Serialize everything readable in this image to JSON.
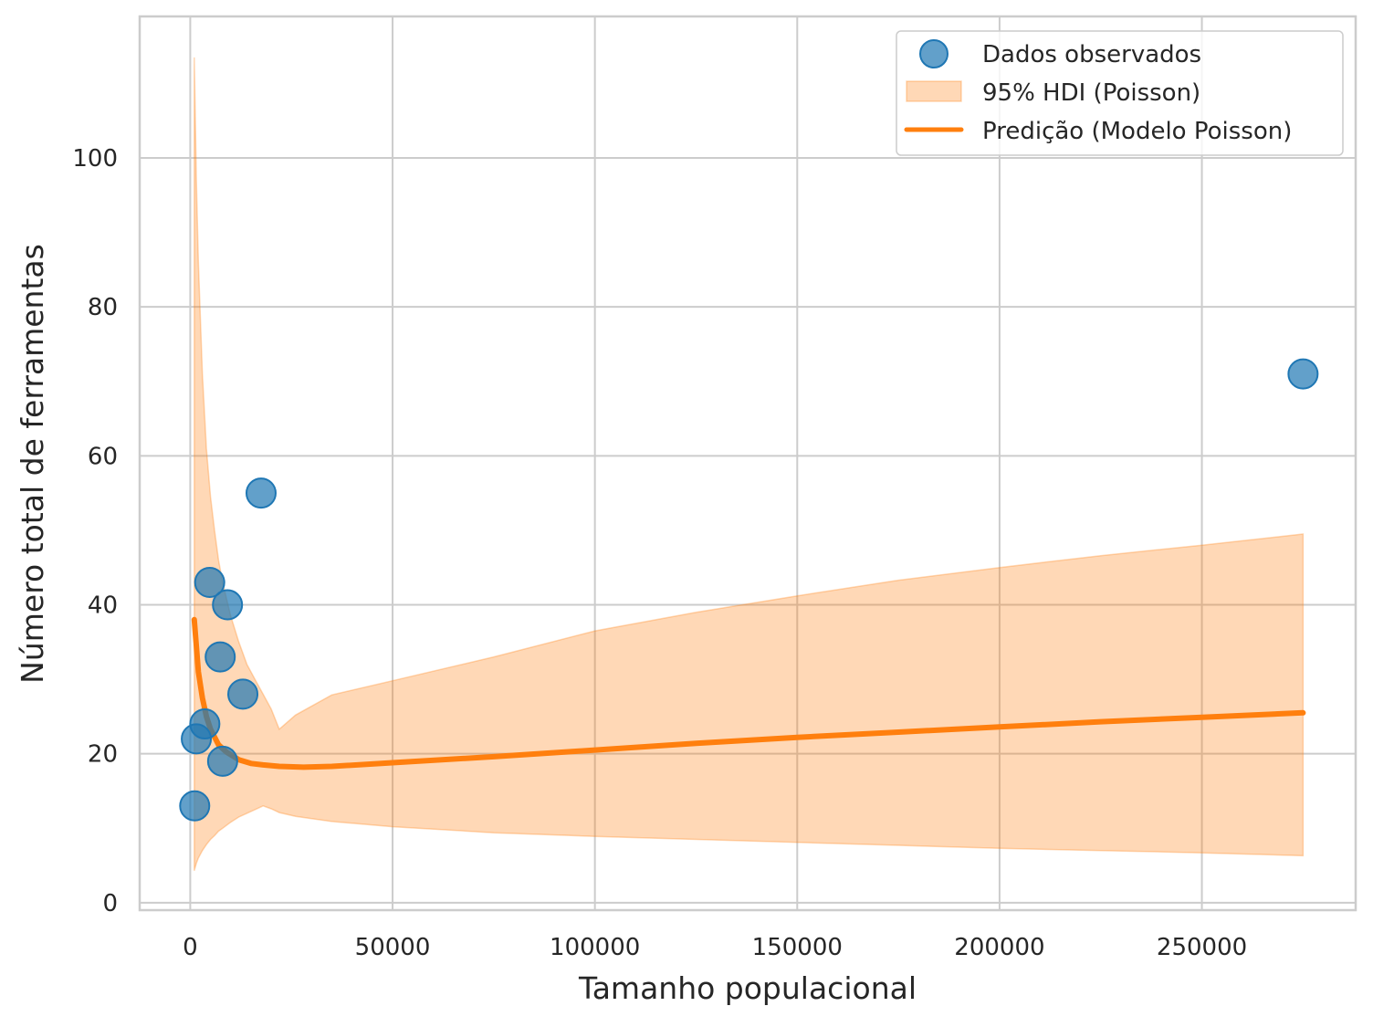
{
  "chart_data": {
    "type": "scatter",
    "xlabel": "Tamanho populacional",
    "ylabel": "Número total de ferramentas",
    "xlim": [
      -12500,
      288000
    ],
    "ylim": [
      -1,
      119
    ],
    "xticks": [
      0,
      50000,
      100000,
      150000,
      200000,
      250000
    ],
    "xtick_labels": [
      "0",
      "50000",
      "100000",
      "150000",
      "200000",
      "250000"
    ],
    "yticks": [
      0,
      20,
      40,
      60,
      80,
      100
    ],
    "ytick_labels": [
      "0",
      "20",
      "40",
      "60",
      "80",
      "100"
    ],
    "grid": true,
    "legend_position": "top-right",
    "legend": {
      "observed": "Dados observados",
      "hdi": "95% HDI (Poisson)",
      "prediction": "Predição (Modelo Poisson)"
    },
    "colors": {
      "observed": "#1f77b4",
      "hdi": "#ff7f0e",
      "prediction": "#ff7f0e",
      "grid": "#cccccc",
      "axes": "#cccccc"
    },
    "observed_points": [
      {
        "x": 1100,
        "y": 13
      },
      {
        "x": 1500,
        "y": 22
      },
      {
        "x": 3600,
        "y": 24
      },
      {
        "x": 4800,
        "y": 43
      },
      {
        "x": 7400,
        "y": 33
      },
      {
        "x": 8000,
        "y": 19
      },
      {
        "x": 9200,
        "y": 40
      },
      {
        "x": 13000,
        "y": 28
      },
      {
        "x": 17500,
        "y": 55
      },
      {
        "x": 275000,
        "y": 71
      }
    ],
    "prediction": {
      "x": [
        1000,
        2000,
        3000,
        4000,
        5000,
        7000,
        9000,
        12000,
        15000,
        18000,
        22000,
        28000,
        35000,
        50000,
        75000,
        100000,
        125000,
        150000,
        175000,
        200000,
        225000,
        250000,
        275000
      ],
      "y": [
        38,
        31,
        27.5,
        25,
        23.3,
        21.2,
        20.2,
        19.2,
        18.7,
        18.5,
        18.3,
        18.2,
        18.3,
        18.8,
        19.6,
        20.5,
        21.4,
        22.2,
        22.9,
        23.6,
        24.3,
        24.9,
        25.5
      ]
    },
    "hdi_band": {
      "x": [
        1000,
        1500,
        2000,
        3000,
        4000,
        5000,
        6000,
        7000,
        8000,
        10000,
        12000,
        14000,
        16000,
        18000,
        20000,
        22000,
        26000,
        35000,
        50000,
        75000,
        100000,
        125000,
        150000,
        175000,
        200000,
        225000,
        250000,
        275000
      ],
      "upper": [
        113.5,
        97,
        86,
        71,
        61,
        54.5,
        50,
        46,
        43,
        38.5,
        35,
        32,
        30,
        28,
        26,
        23.3,
        25.2,
        27.9,
        29.8,
        33,
        36.5,
        39,
        41.2,
        43.3,
        45,
        46.6,
        48,
        49.5
      ],
      "lower": [
        4.3,
        5.3,
        6,
        7,
        7.8,
        8.5,
        9,
        9.6,
        10,
        10.8,
        11.5,
        12,
        12.5,
        13,
        12.6,
        12.1,
        11.6,
        10.9,
        10.2,
        9.4,
        8.9,
        8.5,
        8.1,
        7.7,
        7.3,
        7,
        6.7,
        6.3
      ]
    }
  }
}
